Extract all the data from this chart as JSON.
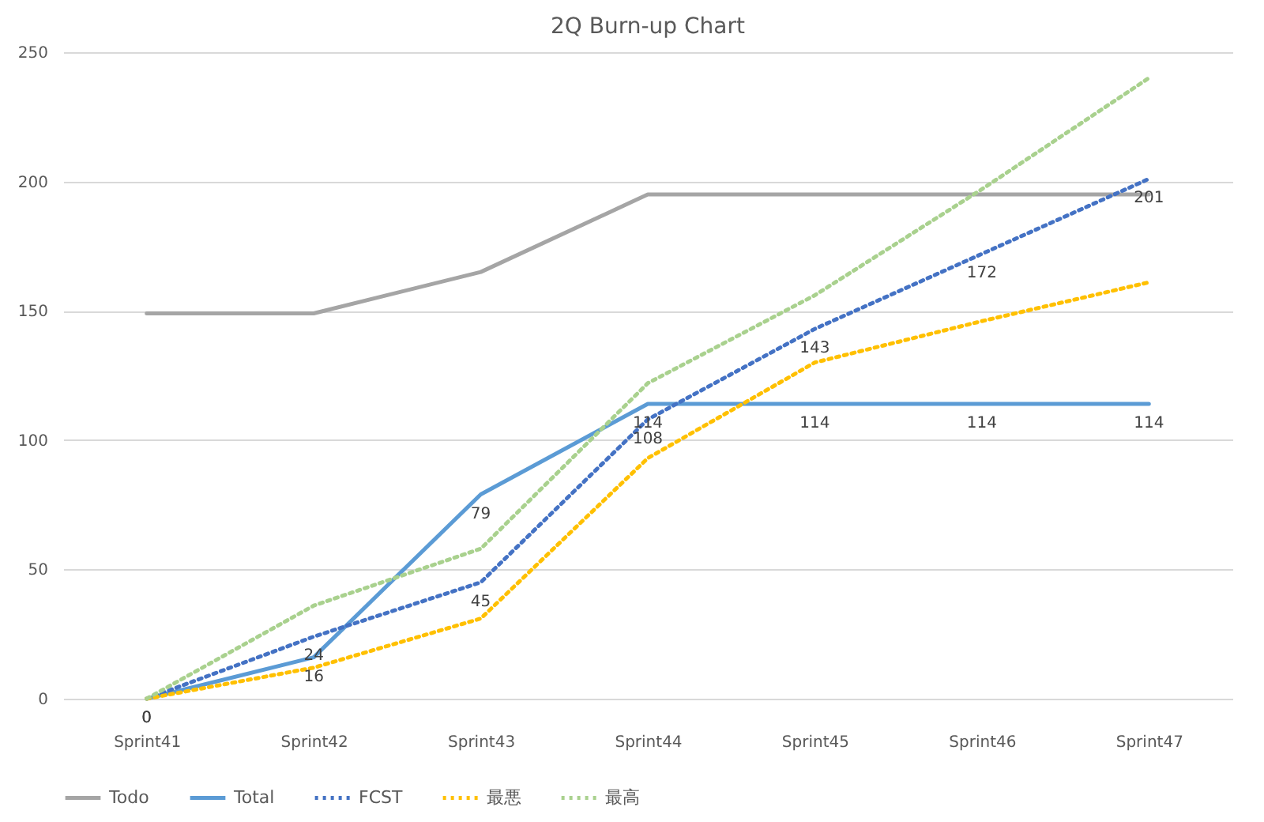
{
  "chart_data": {
    "type": "line",
    "title": "2Q Burn-up Chart",
    "categories": [
      "Sprint41",
      "Sprint42",
      "Sprint43",
      "Sprint44",
      "Sprint45",
      "Sprint46",
      "Sprint47"
    ],
    "ylim": [
      0,
      250
    ],
    "yticks": [
      0,
      50,
      100,
      150,
      200,
      250
    ],
    "grid": "y",
    "legend": "bottom",
    "marker": "none",
    "series": [
      {
        "name": "Todo",
        "color": "#a5a5a5",
        "line_style": "solid",
        "values": [
          149,
          149,
          165,
          195,
          195,
          195,
          195
        ]
      },
      {
        "name": "Total",
        "color": "#5b9bd5",
        "line_style": "solid",
        "values": [
          0,
          16,
          79,
          114,
          114,
          114,
          114
        ],
        "value_labels": [
          "0",
          "16",
          "79",
          "114",
          "114",
          "114",
          "114"
        ]
      },
      {
        "name": "FCST",
        "color": "#4472c4",
        "line_style": "dotted",
        "values": [
          0,
          24,
          45,
          108,
          143,
          172,
          201
        ],
        "value_labels": [
          "0",
          "24",
          "45",
          "108",
          "143",
          "172",
          "201"
        ]
      },
      {
        "name": "最悪",
        "color": "#ffc000",
        "line_style": "dotted",
        "values": [
          0,
          12,
          31,
          93,
          130,
          146,
          161
        ]
      },
      {
        "name": "最高",
        "color": "#a9d18e",
        "line_style": "dotted",
        "values": [
          0,
          36,
          58,
          122,
          156,
          197,
          240
        ]
      }
    ]
  }
}
